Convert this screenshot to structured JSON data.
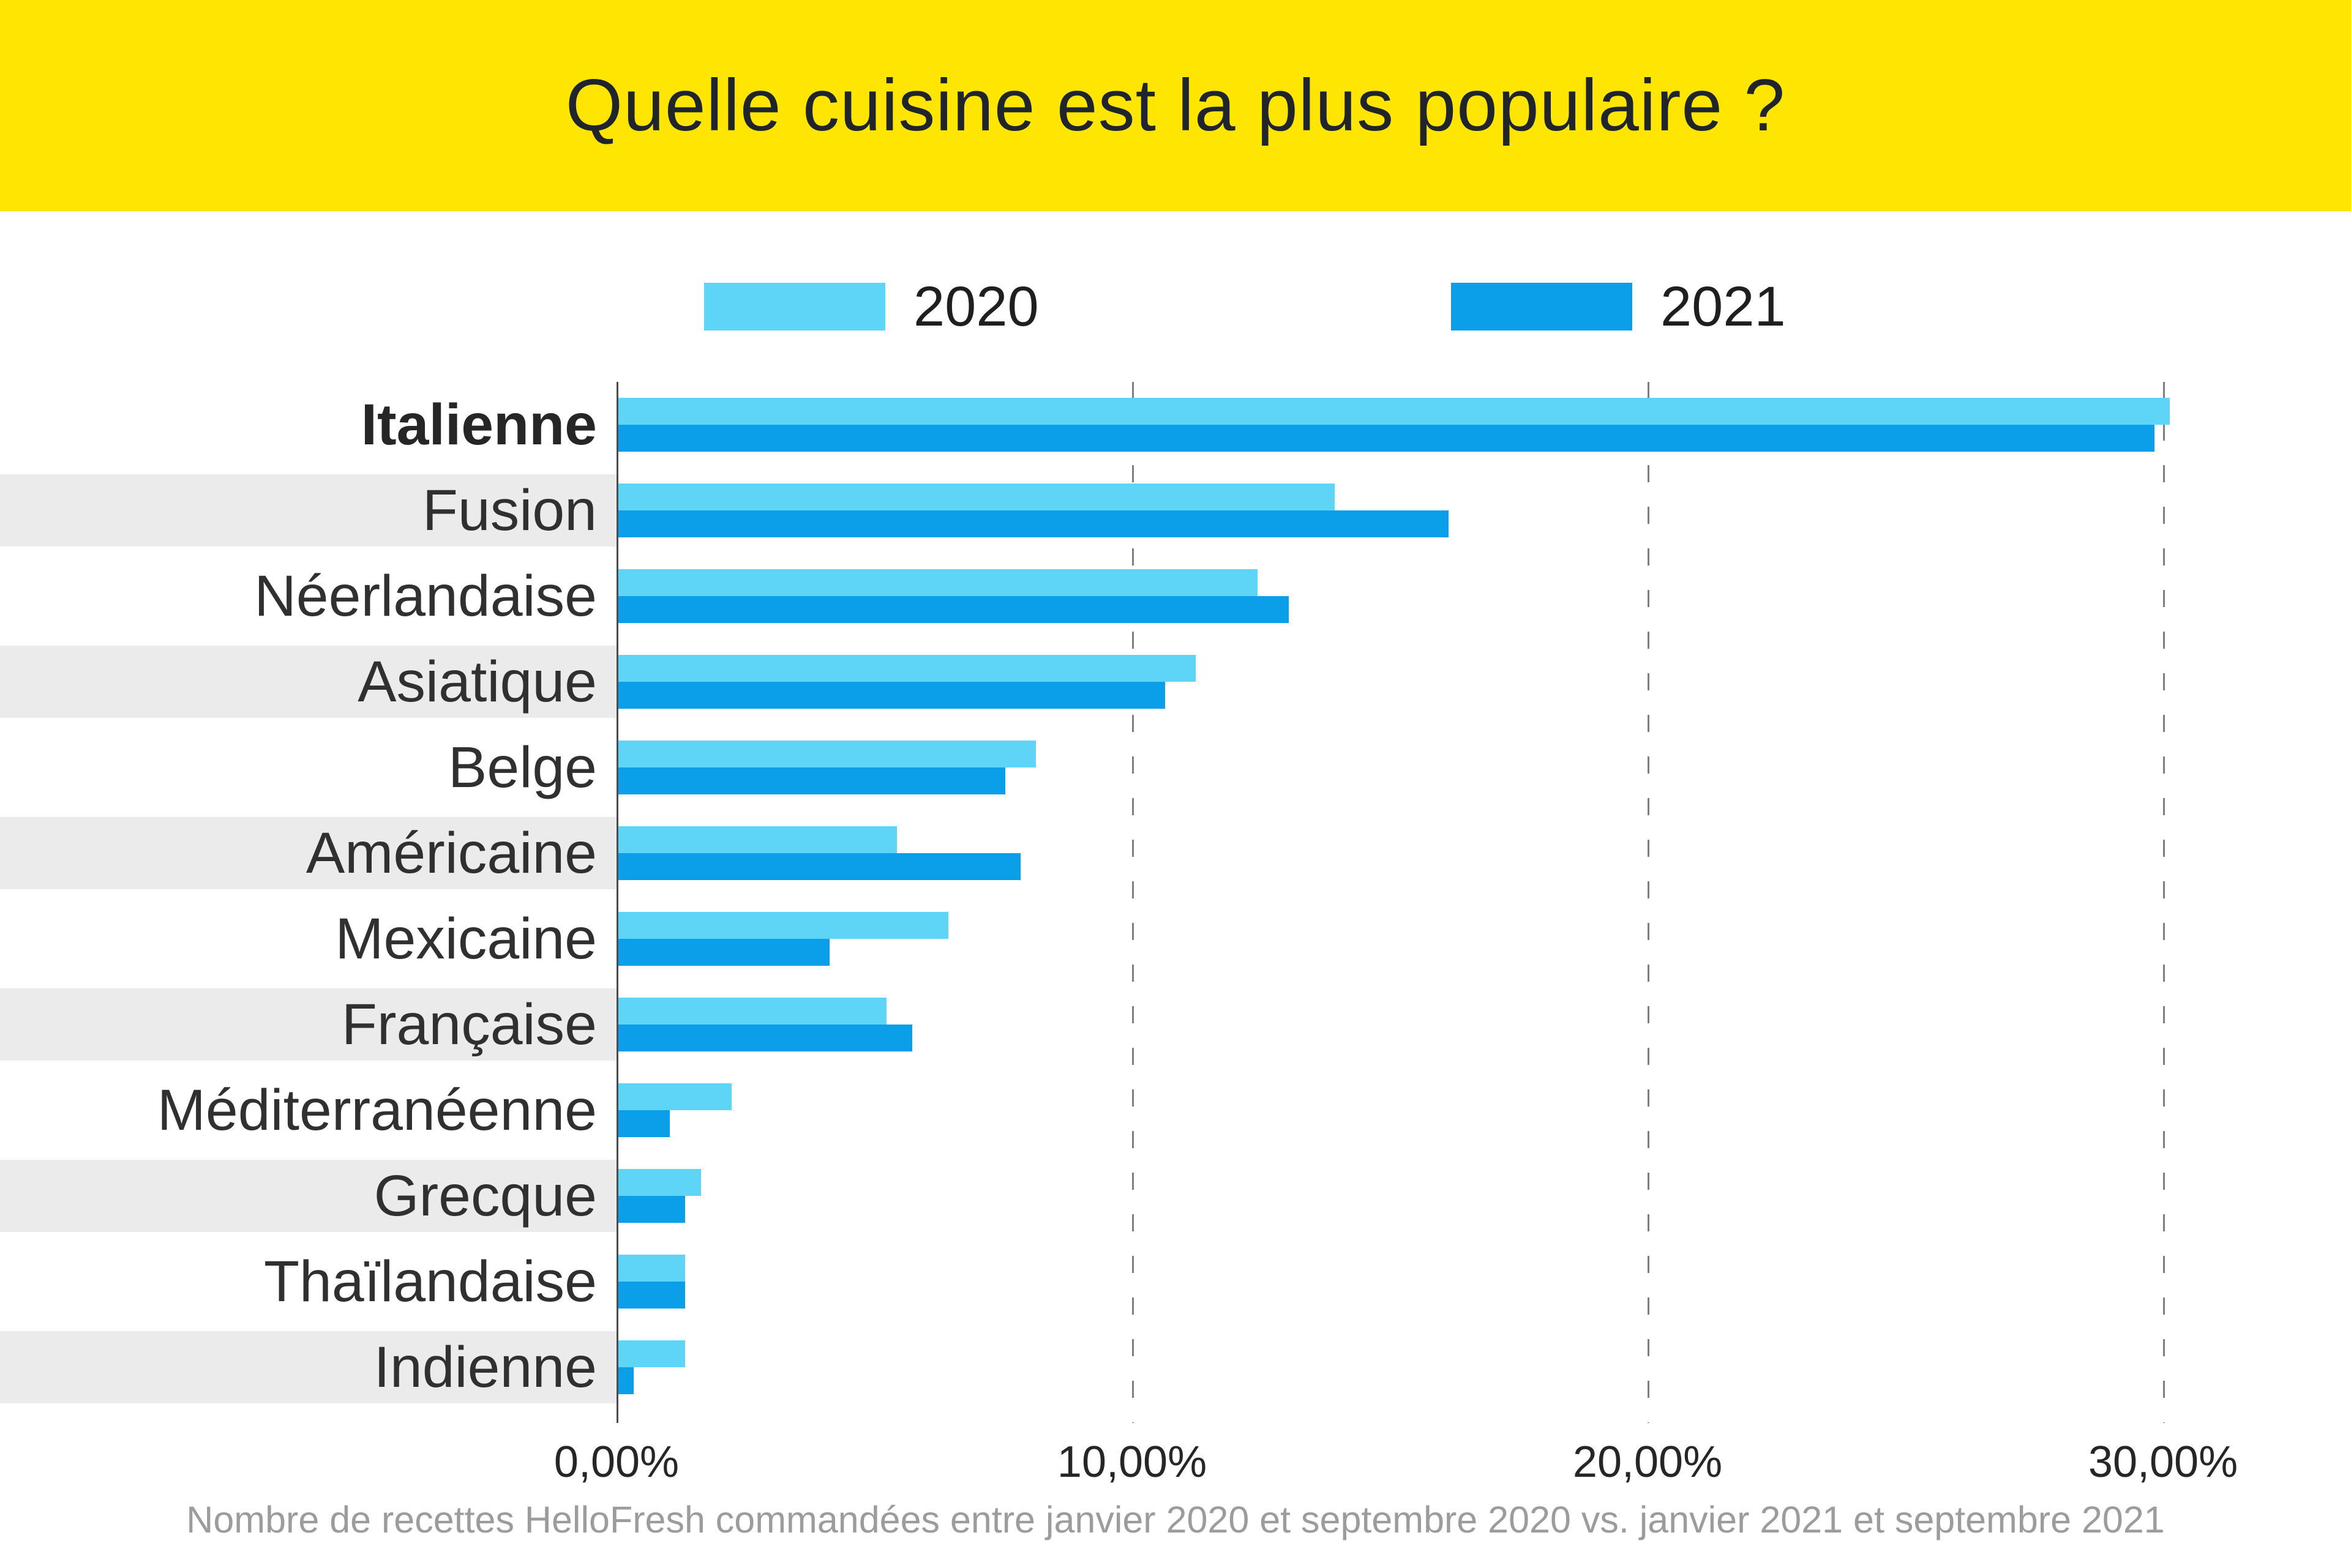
{
  "banner": {
    "title": "Quelle cuisine est la plus populaire ?",
    "background": "#FFE602",
    "text_color": "#20242B"
  },
  "legend": {
    "items": [
      {
        "label": "2020",
        "color": "#5ED4F7"
      },
      {
        "label": "2021",
        "color": "#0A9FE8"
      }
    ]
  },
  "chart_data": {
    "type": "bar",
    "orientation": "horizontal",
    "title": "Quelle cuisine est la plus populaire ?",
    "categories": [
      "Italienne",
      "Fusion",
      "Néerlandaise",
      "Asiatique",
      "Belge",
      "Américaine",
      "Mexicaine",
      "Française",
      "Méditerranéenne",
      "Grecque",
      "Thaïlandaise",
      "Indienne"
    ],
    "series": [
      {
        "name": "2020",
        "color": "#5ED4F7",
        "values": [
          30.1,
          13.9,
          12.4,
          11.2,
          8.1,
          5.4,
          6.4,
          5.2,
          2.2,
          1.6,
          1.3,
          1.3
        ]
      },
      {
        "name": "2021",
        "color": "#0A9FE8",
        "values": [
          29.8,
          16.1,
          13.0,
          10.6,
          7.5,
          7.8,
          4.1,
          5.7,
          1.0,
          1.3,
          1.3,
          0.3
        ]
      }
    ],
    "x_axis": {
      "ticks": [
        "0,00%",
        "10,00%",
        "20,00%",
        "30,00%"
      ],
      "tick_values": [
        0,
        10,
        20,
        30
      ],
      "max": 33.6,
      "unit": "%"
    },
    "grid": "dashed-vertical",
    "legend_position": "top",
    "highlight_category": "Italienne",
    "striped_rows": "alternating"
  },
  "theme": {
    "stripe": "#EBEBEB",
    "grid": "#7F7F7F",
    "axis": "#4D4D4D",
    "label_color": "#303030",
    "footer": "#9C9C9C"
  },
  "footer": {
    "caption": "Nombre de recettes HelloFresh commandées entre janvier 2020 et septembre 2020 vs. janvier 2021 et septembre 2021"
  }
}
